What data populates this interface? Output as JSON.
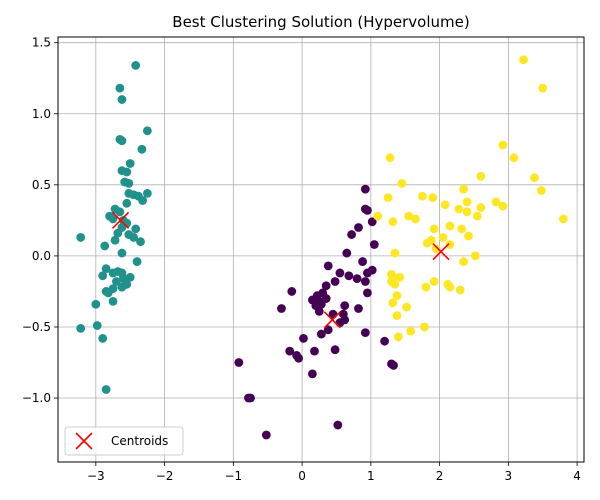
{
  "chart_data": {
    "type": "scatter",
    "title": "Best Clustering Solution (Hypervolume)",
    "xlabel": "",
    "ylabel": "",
    "xlim": [
      -3.55,
      4.1
    ],
    "ylim": [
      -1.45,
      1.54
    ],
    "xticks": [
      -3,
      -2,
      -1,
      0,
      1,
      2,
      3,
      4
    ],
    "yticks": [
      -1.0,
      -0.5,
      0.0,
      0.5,
      1.0,
      1.5
    ],
    "xtick_labels": [
      "−3",
      "−2",
      "−1",
      "0",
      "1",
      "2",
      "3",
      "4"
    ],
    "ytick_labels": [
      "−1.0",
      "−0.5",
      "0.0",
      "0.5",
      "1.0",
      "1.5"
    ],
    "grid": true,
    "legend_position": "lower-left",
    "legend": [
      {
        "label": "Centroids",
        "marker": "x",
        "color": "#ff0000"
      }
    ],
    "series": [
      {
        "color": "#21918c",
        "points": [
          [
            -2.42,
            1.34
          ],
          [
            -2.65,
            1.18
          ],
          [
            -2.62,
            1.1
          ],
          [
            -2.25,
            0.88
          ],
          [
            -2.65,
            0.82
          ],
          [
            -2.62,
            0.81
          ],
          [
            -2.33,
            0.75
          ],
          [
            -2.5,
            0.65
          ],
          [
            -2.62,
            0.6
          ],
          [
            -2.55,
            0.59
          ],
          [
            -2.58,
            0.52
          ],
          [
            -2.52,
            0.51
          ],
          [
            -2.45,
            0.43
          ],
          [
            -2.52,
            0.44
          ],
          [
            -2.25,
            0.44
          ],
          [
            -2.38,
            0.42
          ],
          [
            -2.32,
            0.39
          ],
          [
            -2.55,
            0.37
          ],
          [
            -2.72,
            0.33
          ],
          [
            -2.8,
            0.28
          ],
          [
            -2.65,
            0.31
          ],
          [
            -2.75,
            0.26
          ],
          [
            -2.6,
            0.25
          ],
          [
            -2.55,
            0.23
          ],
          [
            -2.62,
            0.2
          ],
          [
            -2.42,
            0.19
          ],
          [
            -2.68,
            0.16
          ],
          [
            -2.52,
            0.15
          ],
          [
            -2.45,
            0.13
          ],
          [
            -2.72,
            0.11
          ],
          [
            -2.35,
            0.1
          ],
          [
            -3.22,
            0.13
          ],
          [
            -2.87,
            0.07
          ],
          [
            -2.62,
            0.02
          ],
          [
            -2.4,
            -0.04
          ],
          [
            -2.85,
            -0.09
          ],
          [
            -2.68,
            -0.11
          ],
          [
            -2.62,
            -0.12
          ],
          [
            -2.5,
            -0.15
          ],
          [
            -2.75,
            -0.12
          ],
          [
            -2.9,
            -0.14
          ],
          [
            -2.6,
            -0.16
          ],
          [
            -2.7,
            -0.18
          ],
          [
            -2.55,
            -0.2
          ],
          [
            -2.62,
            -0.22
          ],
          [
            -2.75,
            -0.23
          ],
          [
            -2.85,
            -0.25
          ],
          [
            -2.82,
            -0.26
          ],
          [
            -2.75,
            -0.32
          ],
          [
            -3.0,
            -0.34
          ],
          [
            -2.98,
            -0.49
          ],
          [
            -3.22,
            -0.51
          ],
          [
            -2.9,
            -0.58
          ],
          [
            -2.85,
            -0.94
          ]
        ]
      },
      {
        "color": "#440154",
        "points": [
          [
            0.92,
            0.47
          ],
          [
            1.02,
            0.24
          ],
          [
            0.92,
            0.33
          ],
          [
            0.95,
            0.32
          ],
          [
            0.82,
            0.2
          ],
          [
            0.72,
            0.15
          ],
          [
            1.05,
            0.08
          ],
          [
            0.65,
            0.02
          ],
          [
            0.38,
            -0.07
          ],
          [
            0.88,
            -0.04
          ],
          [
            1.02,
            -0.1
          ],
          [
            0.95,
            -0.12
          ],
          [
            0.55,
            -0.12
          ],
          [
            0.68,
            -0.14
          ],
          [
            0.8,
            -0.16
          ],
          [
            0.92,
            -0.18
          ],
          [
            0.48,
            -0.18
          ],
          [
            0.35,
            -0.21
          ],
          [
            -0.15,
            -0.25
          ],
          [
            0.3,
            -0.26
          ],
          [
            0.95,
            -0.26
          ],
          [
            0.22,
            -0.28
          ],
          [
            0.25,
            -0.32
          ],
          [
            0.35,
            -0.3
          ],
          [
            0.15,
            -0.31
          ],
          [
            0.28,
            -0.34
          ],
          [
            -0.3,
            -0.37
          ],
          [
            0.2,
            -0.35
          ],
          [
            0.62,
            -0.35
          ],
          [
            0.82,
            -0.37
          ],
          [
            0.25,
            -0.39
          ],
          [
            0.45,
            -0.41
          ],
          [
            0.6,
            -0.41
          ],
          [
            0.62,
            -0.45
          ],
          [
            0.55,
            -0.47
          ],
          [
            0.38,
            -0.52
          ],
          [
            0.92,
            -0.54
          ],
          [
            0.28,
            -0.55
          ],
          [
            0.02,
            -0.58
          ],
          [
            1.2,
            -0.6
          ],
          [
            -0.18,
            -0.67
          ],
          [
            0.18,
            -0.67
          ],
          [
            0.48,
            -0.66
          ],
          [
            -0.08,
            -0.7
          ],
          [
            -0.05,
            -0.72
          ],
          [
            -0.92,
            -0.75
          ],
          [
            1.3,
            -0.76
          ],
          [
            1.33,
            -0.77
          ],
          [
            0.15,
            -0.83
          ],
          [
            -0.75,
            -1.0
          ],
          [
            -0.78,
            -1.0
          ],
          [
            0.52,
            -1.19
          ],
          [
            -0.52,
            -1.26
          ]
        ]
      },
      {
        "color": "#fde725",
        "points": [
          [
            3.22,
            1.38
          ],
          [
            3.5,
            1.18
          ],
          [
            2.92,
            0.78
          ],
          [
            3.08,
            0.69
          ],
          [
            1.28,
            0.69
          ],
          [
            2.6,
            0.56
          ],
          [
            3.38,
            0.55
          ],
          [
            1.45,
            0.51
          ],
          [
            2.35,
            0.47
          ],
          [
            3.48,
            0.46
          ],
          [
            1.75,
            0.42
          ],
          [
            1.25,
            0.41
          ],
          [
            1.9,
            0.41
          ],
          [
            2.82,
            0.38
          ],
          [
            2.4,
            0.38
          ],
          [
            2.08,
            0.36
          ],
          [
            2.92,
            0.35
          ],
          [
            2.6,
            0.34
          ],
          [
            2.28,
            0.33
          ],
          [
            2.4,
            0.31
          ],
          [
            1.55,
            0.28
          ],
          [
            1.1,
            0.28
          ],
          [
            1.65,
            0.26
          ],
          [
            2.55,
            0.28
          ],
          [
            3.8,
            0.26
          ],
          [
            1.32,
            0.24
          ],
          [
            2.15,
            0.21
          ],
          [
            1.92,
            0.19
          ],
          [
            2.32,
            0.19
          ],
          [
            2.05,
            0.13
          ],
          [
            1.88,
            0.11
          ],
          [
            2.42,
            0.14
          ],
          [
            1.82,
            0.09
          ],
          [
            2.15,
            0.08
          ],
          [
            1.95,
            0.05
          ],
          [
            1.35,
            0.02
          ],
          [
            2.52,
            0.0
          ],
          [
            2.35,
            -0.04
          ],
          [
            1.3,
            -0.13
          ],
          [
            1.42,
            -0.15
          ],
          [
            1.32,
            -0.15
          ],
          [
            1.3,
            -0.18
          ],
          [
            1.35,
            -0.2
          ],
          [
            1.92,
            -0.18
          ],
          [
            2.12,
            -0.2
          ],
          [
            1.8,
            -0.22
          ],
          [
            2.15,
            -0.22
          ],
          [
            2.3,
            -0.24
          ],
          [
            1.38,
            -0.28
          ],
          [
            1.52,
            -0.36
          ],
          [
            1.32,
            -0.33
          ],
          [
            1.38,
            -0.42
          ],
          [
            1.78,
            -0.5
          ],
          [
            1.58,
            -0.53
          ],
          [
            1.4,
            -0.57
          ]
        ]
      }
    ],
    "centroids": [
      [
        -2.64,
        0.25
      ],
      [
        0.44,
        -0.45
      ],
      [
        2.02,
        0.03
      ]
    ]
  }
}
